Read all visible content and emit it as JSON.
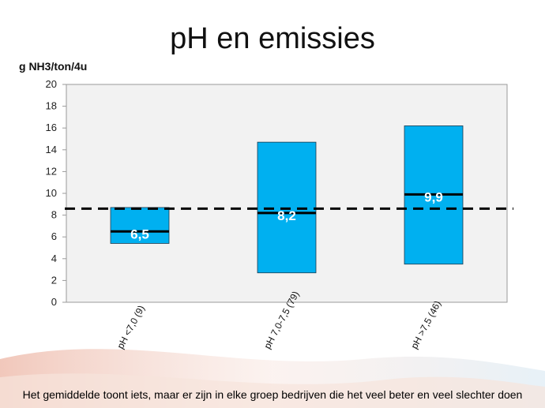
{
  "slide": {
    "title": "pH en emissies",
    "footer": "Het gemiddelde toont iets, maar er zijn in elke groep bedrijven die het veel beter en veel slechter doen"
  },
  "chart_data": {
    "type": "bar",
    "title": "",
    "ylabel": "g NH3/ton/4u",
    "xlabel": "",
    "ylim": [
      0,
      20
    ],
    "yticks": [
      0,
      2,
      4,
      6,
      8,
      10,
      12,
      14,
      16,
      18,
      20
    ],
    "categories": [
      "pH <7,0 (9)",
      "pH 7,0-7,5 (79)",
      "pH >7,5 (46)"
    ],
    "ranges": [
      {
        "low": 5.4,
        "high": 8.7,
        "mean": 6.5,
        "label": "6,5"
      },
      {
        "low": 2.7,
        "high": 14.7,
        "mean": 8.2,
        "label": "8,2"
      },
      {
        "low": 3.5,
        "high": 16.2,
        "mean": 9.9,
        "label": "9,9"
      }
    ],
    "reference_line": 8.6,
    "bar_color": "#00b0f0",
    "grid": false
  }
}
